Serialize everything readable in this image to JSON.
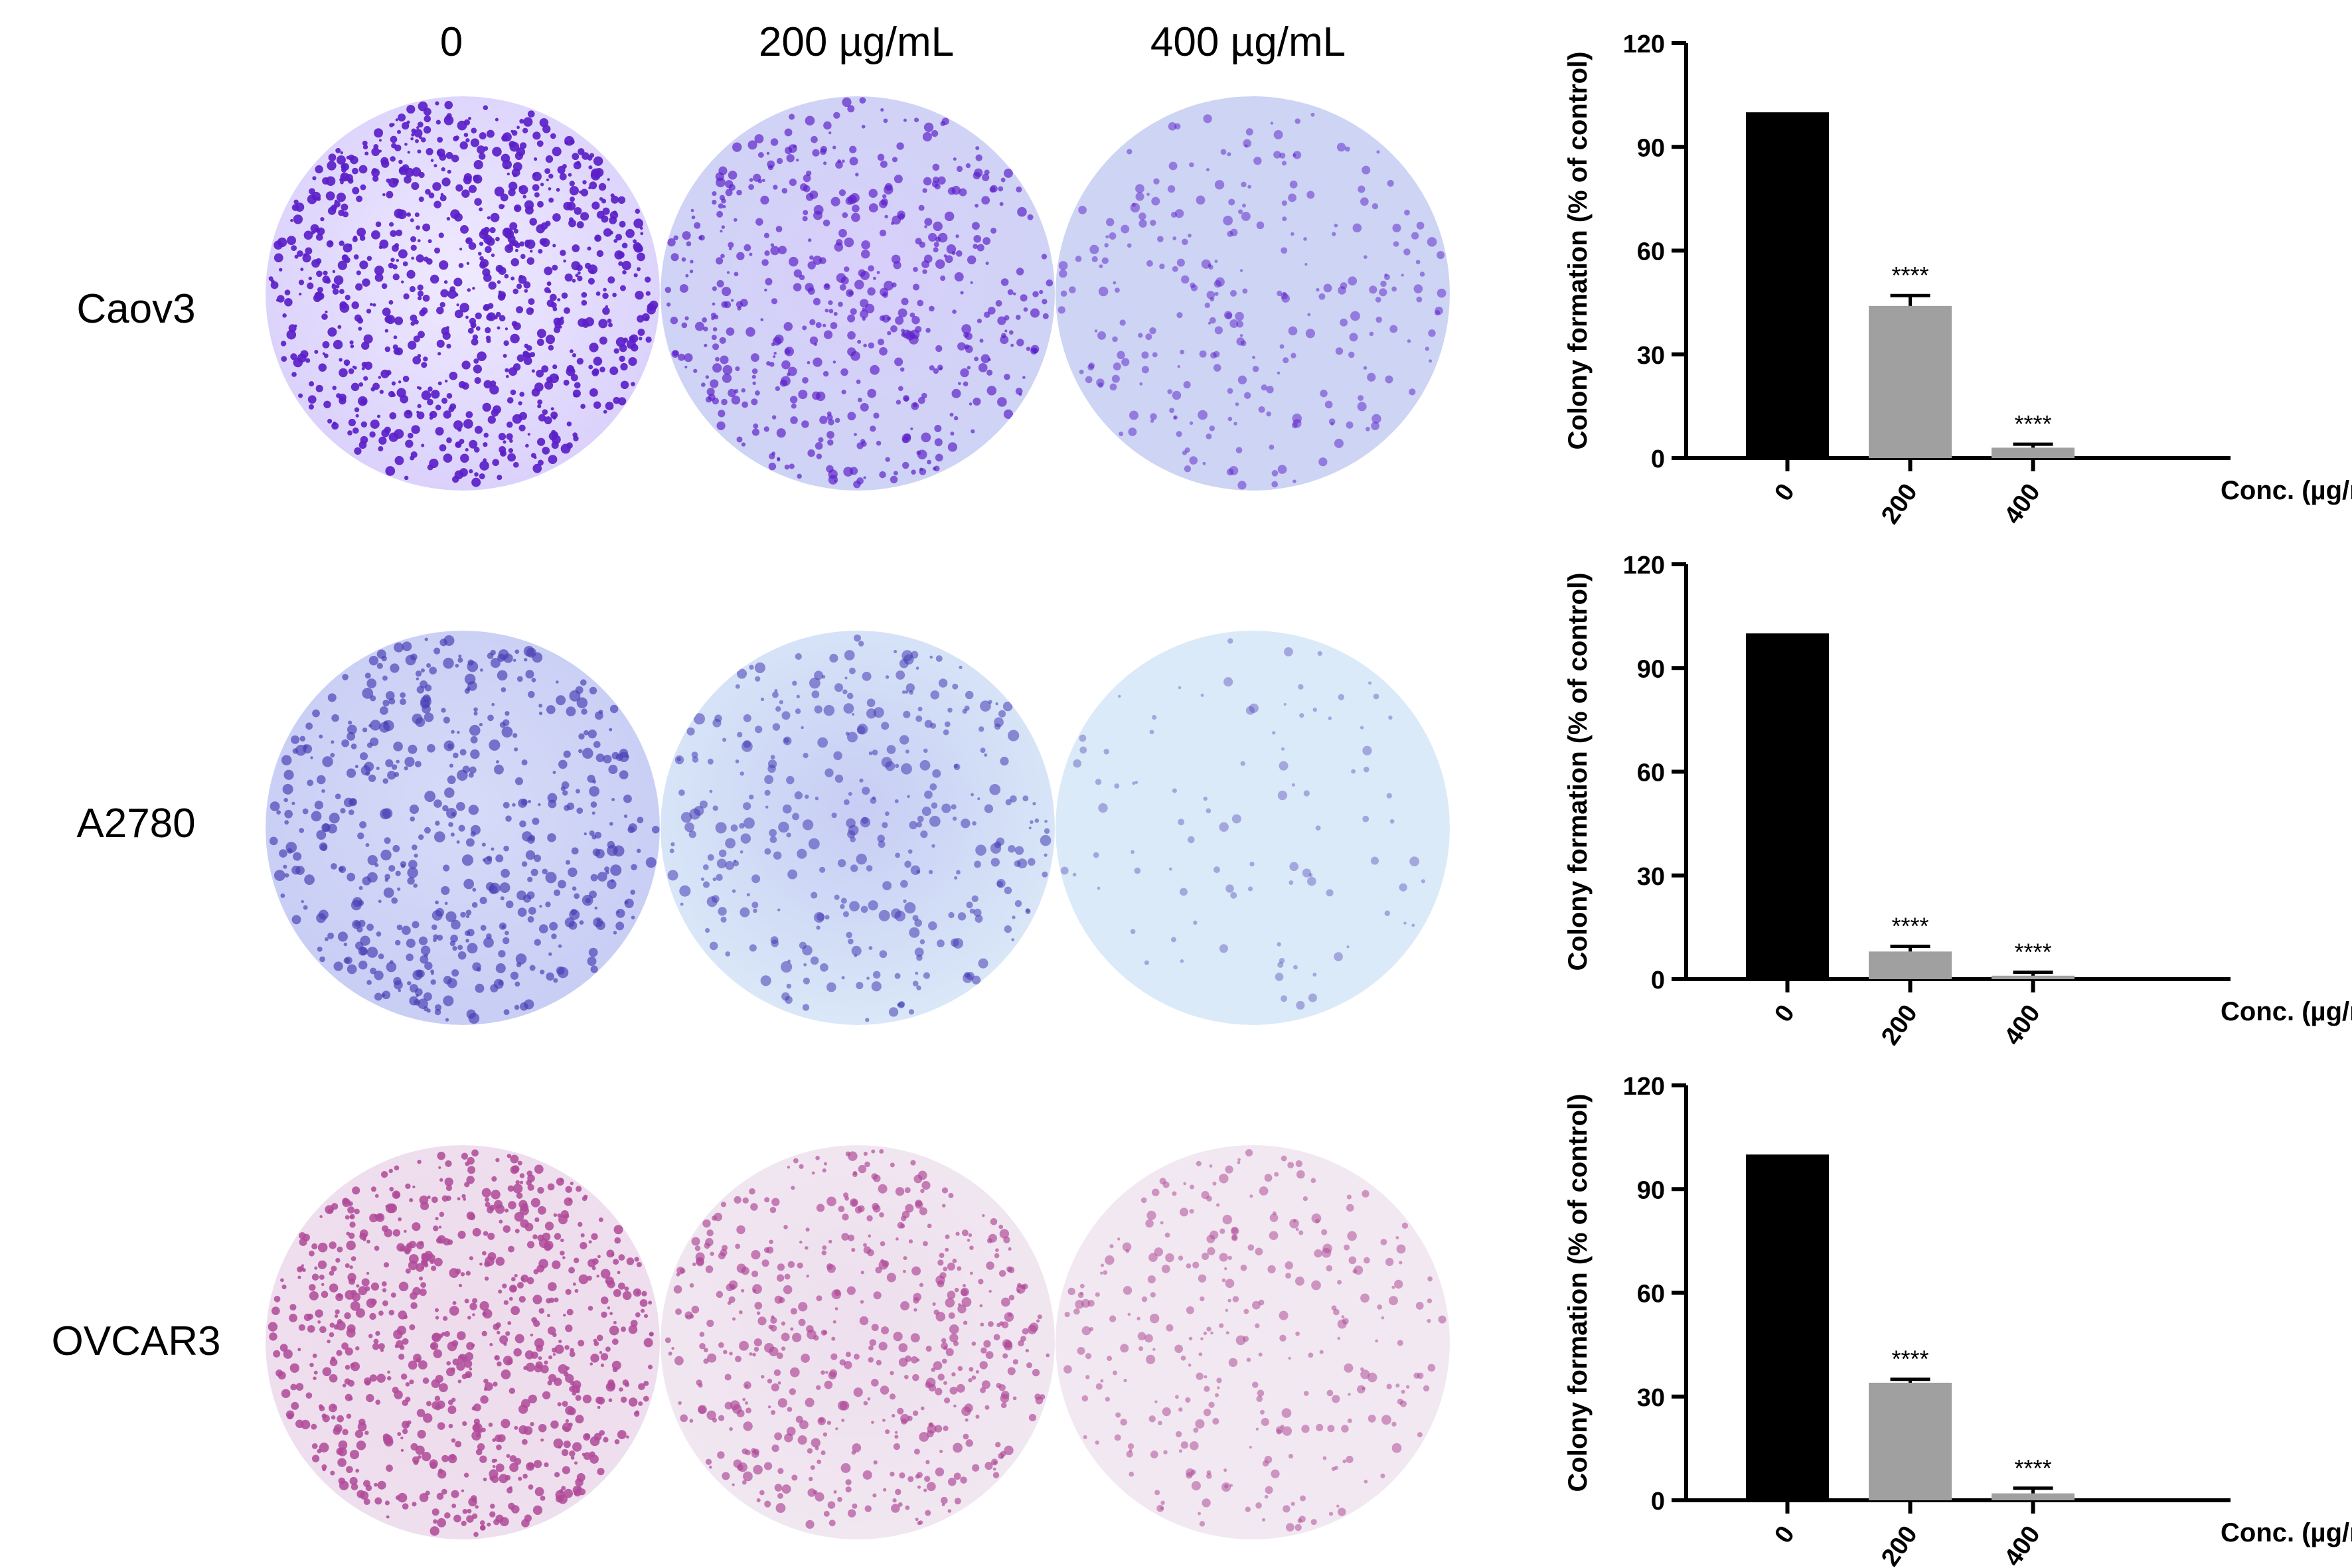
{
  "columns": [
    "0",
    "200 µg/mL",
    "400 µg/mL"
  ],
  "rows": [
    {
      "label": "Caov3",
      "stain": "violet",
      "densities": [
        0.95,
        0.55,
        0.25
      ]
    },
    {
      "label": "A2780",
      "stain": "blue",
      "densities": [
        0.55,
        0.35,
        0.06
      ]
    },
    {
      "label": "OVCAR3",
      "stain": "pink",
      "densities": [
        0.85,
        0.55,
        0.3
      ]
    }
  ],
  "colors": {
    "control_bar": "#000000",
    "treated_bar": "#a0a0a0",
    "violet_dish": "#5b1fc8",
    "blue_dish": "#4a3fb5",
    "pink_dish": "#b04a98"
  },
  "chart_data": [
    {
      "type": "bar",
      "categories": [
        "0",
        "200",
        "400"
      ],
      "values": [
        100,
        44,
        3
      ],
      "errors": [
        0,
        3,
        1
      ],
      "annotations": [
        "",
        "****",
        "****"
      ],
      "ylabel": "Colony formation (% of control)",
      "xlabel": "Conc. (µg/mL)",
      "ylim": [
        0,
        120
      ],
      "yticks": [
        0,
        30,
        60,
        90,
        120
      ]
    },
    {
      "type": "bar",
      "categories": [
        "0",
        "200",
        "400"
      ],
      "values": [
        100,
        8,
        1
      ],
      "errors": [
        0,
        1.5,
        1
      ],
      "annotations": [
        "",
        "****",
        "****"
      ],
      "ylabel": "Colony formation (% of control)",
      "xlabel": "Conc. (µg/mL)",
      "ylim": [
        0,
        120
      ],
      "yticks": [
        0,
        30,
        60,
        90,
        120
      ]
    },
    {
      "type": "bar",
      "categories": [
        "0",
        "200",
        "400"
      ],
      "values": [
        100,
        34,
        2
      ],
      "errors": [
        0,
        1,
        1.5
      ],
      "annotations": [
        "",
        "****",
        "****"
      ],
      "ylabel": "Colony formation (% of control)",
      "xlabel": "Conc. (µg/mL)",
      "ylim": [
        0,
        120
      ],
      "yticks": [
        0,
        30,
        60,
        90,
        120
      ]
    }
  ]
}
